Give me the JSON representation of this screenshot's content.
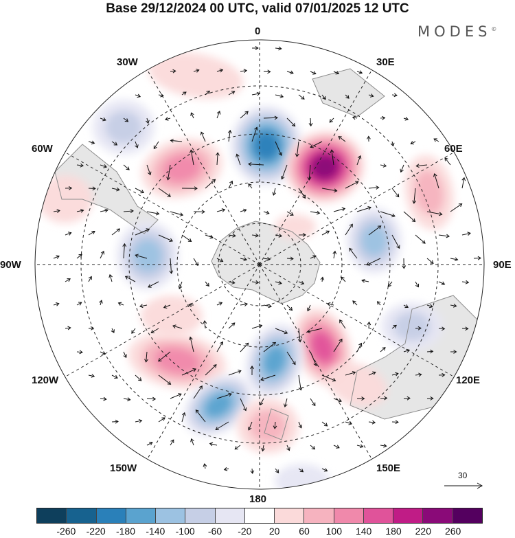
{
  "title": "Base 29/12/2024 00 UTC, valid 07/01/2025 12 UTC",
  "brand": "MODES",
  "brand_mark": "©",
  "longitude_labels": {
    "top": "0",
    "top_right": "30E",
    "right_upper": "60E",
    "right": "90E",
    "right_lower": "120E",
    "bottom_right": "150E",
    "bottom": "180",
    "bottom_left": "150W",
    "left_lower": "120W",
    "left": "90W",
    "left_upper": "60W",
    "top_left": "30W"
  },
  "reference_vector": "30",
  "colorbar": {
    "ticks": [
      "-260",
      "-220",
      "-180",
      "-140",
      "-100",
      "-60",
      "-20",
      "20",
      "60",
      "100",
      "140",
      "180",
      "220",
      "260"
    ],
    "colors": [
      "#0e3f5c",
      "#17628f",
      "#2a80b9",
      "#5aa3cf",
      "#9cc2e2",
      "#c6cfe6",
      "#e6e6f3",
      "#ffffff",
      "#fbdada",
      "#f6b3bf",
      "#f089ab",
      "#e0539a",
      "#c01c86",
      "#8a0a78",
      "#54005f"
    ]
  },
  "map_colors": {
    "land": "#e6e6e6",
    "coast": "#8c8c8c",
    "grid": "#222222",
    "arrow": "#111111"
  }
}
